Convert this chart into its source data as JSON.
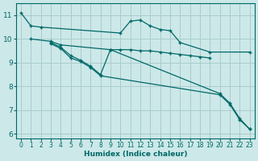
{
  "xlabel": "Humidex (Indice chaleur)",
  "background_color": "#cce8e8",
  "grid_color": "#aacccc",
  "line_color": "#006868",
  "xlim": [
    -0.5,
    23.5
  ],
  "ylim": [
    5.8,
    11.5
  ],
  "xticks": [
    0,
    1,
    2,
    3,
    4,
    5,
    6,
    7,
    8,
    9,
    10,
    11,
    12,
    13,
    14,
    15,
    16,
    17,
    18,
    19,
    20,
    21,
    22,
    23
  ],
  "yticks": [
    6,
    7,
    8,
    9,
    10,
    11
  ],
  "lines": [
    {
      "x": [
        0,
        1,
        2,
        10,
        11,
        12,
        13,
        14,
        15,
        16,
        19,
        23
      ],
      "y": [
        11.1,
        10.55,
        10.5,
        10.25,
        10.75,
        10.8,
        10.55,
        10.4,
        10.35,
        9.85,
        9.45,
        9.45
      ]
    },
    {
      "x": [
        1,
        3,
        4,
        9,
        10,
        11,
        12,
        13,
        14,
        15,
        16,
        17,
        18,
        19
      ],
      "y": [
        10.0,
        9.9,
        9.75,
        9.55,
        9.55,
        9.55,
        9.5,
        9.5,
        9.45,
        9.4,
        9.35,
        9.3,
        9.25,
        9.2
      ]
    },
    {
      "x": [
        3,
        4,
        5,
        6,
        7,
        8,
        9,
        20,
        21,
        22,
        23
      ],
      "y": [
        9.85,
        9.65,
        9.3,
        9.1,
        8.85,
        8.5,
        9.55,
        7.7,
        7.3,
        6.65,
        6.2
      ]
    },
    {
      "x": [
        3,
        4,
        5,
        6,
        7,
        8,
        20,
        21,
        22,
        23
      ],
      "y": [
        9.8,
        9.6,
        9.2,
        9.05,
        8.8,
        8.45,
        7.65,
        7.25,
        6.6,
        6.2
      ]
    }
  ]
}
